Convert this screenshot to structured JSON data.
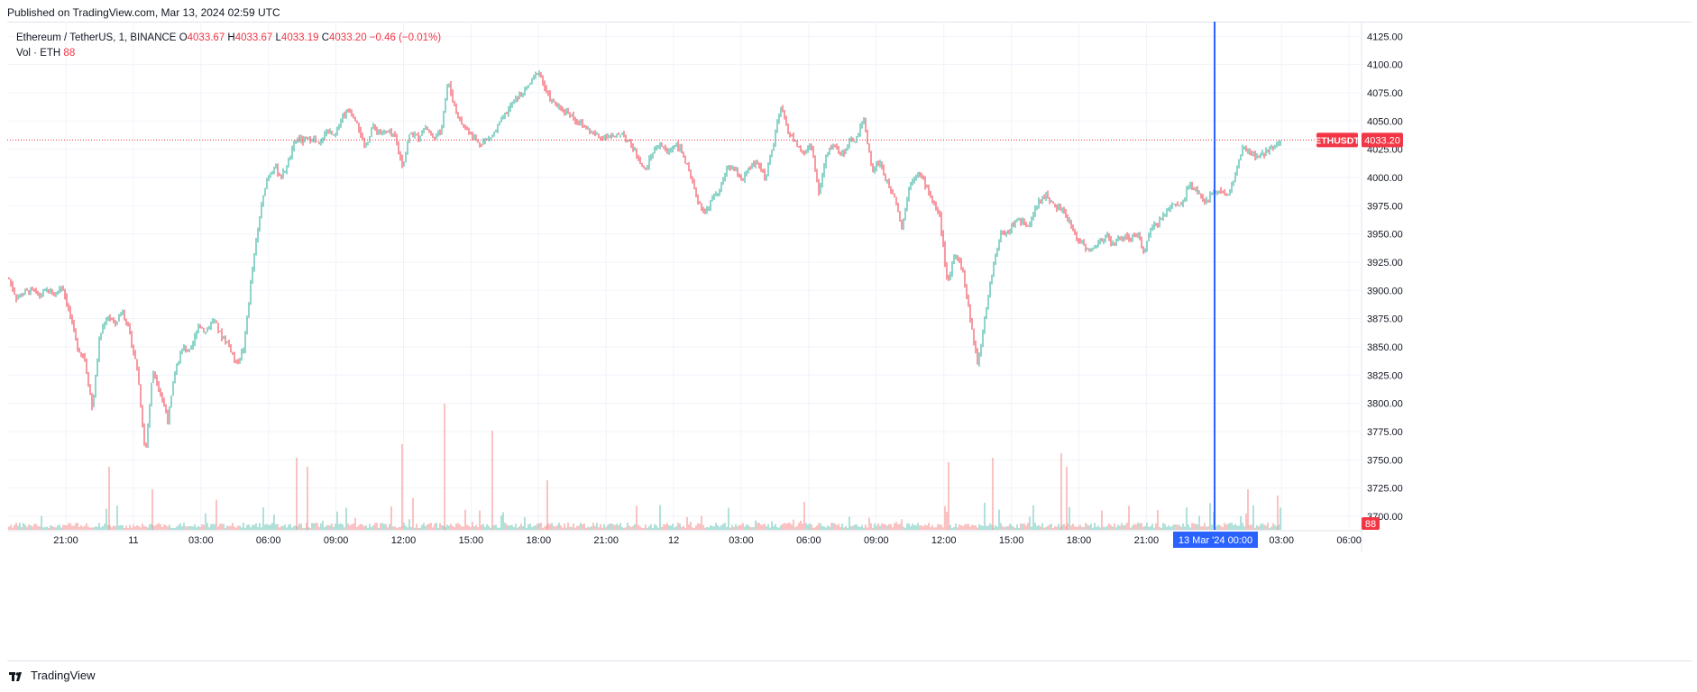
{
  "banner": "Published on TradingView.com, Mar 13, 2024 02:59 UTC",
  "legend": {
    "symbol": "Ethereum / TetherUS, 1, BINANCE",
    "o_label": "O",
    "o": "4033.67",
    "h_label": "H",
    "h": "4033.67",
    "l_label": "L",
    "l": "4033.19",
    "c_label": "C",
    "c": "4033.20",
    "change": "−0.46 (−0.01%)",
    "vol_label": "Vol · ETH",
    "vol_value": "88"
  },
  "price_tag": {
    "symbol": "ETHUSDT",
    "price": "4033.20"
  },
  "volume_tag": "88",
  "crosshair_label": {
    "date": "13 Mar '24",
    "time": "00:00"
  },
  "footer": {
    "brand": "TradingView",
    "logo_icon": "tradingview-logo-icon"
  },
  "colors": {
    "up": "#22ab94",
    "down": "#f23645",
    "crosshair": "#2962ff",
    "volume_up": "#8fd4c9",
    "volume_down": "#f7a9a7"
  },
  "chart_data": {
    "type": "candlestick",
    "symbol": "ETHUSDT",
    "interval": "1",
    "exchange": "BINANCE",
    "y_ticks": [
      "3700.00",
      "3725.00",
      "3750.00",
      "3775.00",
      "3800.00",
      "3825.00",
      "3850.00",
      "3875.00",
      "3900.00",
      "3925.00",
      "3950.00",
      "3975.00",
      "4000.00",
      "4025.00",
      "4050.00",
      "4075.00",
      "4100.00",
      "4125.00"
    ],
    "ylim": [
      3688,
      4138
    ],
    "x_ticks": [
      "21:00",
      "11",
      "03:00",
      "06:00",
      "09:00",
      "12:00",
      "15:00",
      "18:00",
      "21:00",
      "12",
      "03:00",
      "06:00",
      "09:00",
      "12:00",
      "15:00",
      "18:00",
      "21:00",
      "00:00",
      "03:00",
      "06:00"
    ],
    "price_path": [
      [
        "18:00",
        3910
      ],
      [
        "18:30",
        3893
      ],
      [
        "19:00",
        3898
      ],
      [
        "19:30",
        3900
      ],
      [
        "20:00",
        3895
      ],
      [
        "20:30",
        3900
      ],
      [
        "21:00",
        3896
      ],
      [
        "21:30",
        3905
      ],
      [
        "22:00",
        3880
      ],
      [
        "22:30",
        3850
      ],
      [
        "23:00",
        3840
      ],
      [
        "23:20",
        3795
      ],
      [
        "23:40",
        3860
      ],
      [
        "00:00",
        3878
      ],
      [
        "00:30",
        3870
      ],
      [
        "01:00",
        3883
      ],
      [
        "01:30",
        3860
      ],
      [
        "02:00",
        3828
      ],
      [
        "02:10",
        3755
      ],
      [
        "02:20",
        3830
      ],
      [
        "02:40",
        3810
      ],
      [
        "03:00",
        3785
      ],
      [
        "03:30",
        3830
      ],
      [
        "04:00",
        3850
      ],
      [
        "04:30",
        3845
      ],
      [
        "05:00",
        3870
      ],
      [
        "05:30",
        3863
      ],
      [
        "06:00",
        3875
      ],
      [
        "06:30",
        3860
      ],
      [
        "07:00",
        3853
      ],
      [
        "07:30",
        3835
      ],
      [
        "08:00",
        3848
      ],
      [
        "08:20",
        3910
      ],
      [
        "08:40",
        3960
      ],
      [
        "09:00",
        3998
      ],
      [
        "09:30",
        4010
      ],
      [
        "10:00",
        4000
      ],
      [
        "10:20",
        4015
      ],
      [
        "10:40",
        4035
      ],
      [
        "11:00",
        4032
      ],
      [
        "11:30",
        4035
      ],
      [
        "12:00",
        4028
      ],
      [
        "12:30",
        4042
      ],
      [
        "13:00",
        4035
      ],
      [
        "13:30",
        4055
      ],
      [
        "14:00",
        4060
      ],
      [
        "14:30",
        4050
      ],
      [
        "15:00",
        4025
      ],
      [
        "15:30",
        4045
      ],
      [
        "16:00",
        4040
      ],
      [
        "16:30",
        4040
      ],
      [
        "17:00",
        4035
      ],
      [
        "17:30",
        4010
      ],
      [
        "18:00",
        4040
      ],
      [
        "18:30",
        4035
      ],
      [
        "19:00",
        4045
      ],
      [
        "19:30",
        4035
      ],
      [
        "20:00",
        4040
      ],
      [
        "20:20",
        4085
      ],
      [
        "20:40",
        4060
      ],
      [
        "21:00",
        4045
      ],
      [
        "21:30",
        4040
      ],
      [
        "22:00",
        4030
      ],
      [
        "22:30",
        4033
      ],
      [
        "23:00",
        4038
      ],
      [
        "23:30",
        4050
      ],
      [
        "00:00",
        4060
      ],
      [
        "00:30",
        4070
      ],
      [
        "01:00",
        4075
      ],
      [
        "01:30",
        4085
      ],
      [
        "02:00",
        4095
      ],
      [
        "02:30",
        4075
      ],
      [
        "03:00",
        4065
      ],
      [
        "03:30",
        4060
      ],
      [
        "04:00",
        4058
      ],
      [
        "04:30",
        4050
      ],
      [
        "05:00",
        4045
      ],
      [
        "05:30",
        4040
      ],
      [
        "06:00",
        4035
      ],
      [
        "06:30",
        4038
      ],
      [
        "07:00",
        4035
      ],
      [
        "07:30",
        4040
      ],
      [
        "08:00",
        4030
      ],
      [
        "08:30",
        4020
      ],
      [
        "09:00",
        4005
      ],
      [
        "09:30",
        4022
      ],
      [
        "10:00",
        4030
      ],
      [
        "10:30",
        4022
      ],
      [
        "11:00",
        4030
      ],
      [
        "11:30",
        4022
      ],
      [
        "12:00",
        4000
      ],
      [
        "12:30",
        3980
      ],
      [
        "13:00",
        3968
      ],
      [
        "13:30",
        3982
      ],
      [
        "14:00",
        3990
      ],
      [
        "14:30",
        4010
      ],
      [
        "15:00",
        4005
      ],
      [
        "15:30",
        3998
      ],
      [
        "16:00",
        4010
      ],
      [
        "16:30",
        4012
      ],
      [
        "17:00",
        4000
      ],
      [
        "17:30",
        4030
      ],
      [
        "17:45",
        4062
      ],
      [
        "18:00",
        4040
      ],
      [
        "18:30",
        4030
      ],
      [
        "19:00",
        4020
      ],
      [
        "19:20",
        4030
      ],
      [
        "19:40",
        3985
      ],
      [
        "20:00",
        4020
      ],
      [
        "20:30",
        4030
      ],
      [
        "21:00",
        4020
      ],
      [
        "21:30",
        4030
      ],
      [
        "22:00",
        4035
      ],
      [
        "22:20",
        4052
      ],
      [
        "22:40",
        4005
      ],
      [
        "23:00",
        4015
      ],
      [
        "23:30",
        3995
      ],
      [
        "00:00",
        3985
      ],
      [
        "00:20",
        3955
      ],
      [
        "00:40",
        3995
      ],
      [
        "01:00",
        4005
      ],
      [
        "01:30",
        3995
      ],
      [
        "02:00",
        3980
      ],
      [
        "02:30",
        3965
      ],
      [
        "03:00",
        3905
      ],
      [
        "03:20",
        3935
      ],
      [
        "03:40",
        3918
      ],
      [
        "04:00",
        3875
      ],
      [
        "04:10",
        3835
      ],
      [
        "04:20",
        3880
      ],
      [
        "04:40",
        3920
      ],
      [
        "05:00",
        3950
      ],
      [
        "05:30",
        3952
      ],
      [
        "06:00",
        3962
      ],
      [
        "06:30",
        3960
      ],
      [
        "07:00",
        3960
      ],
      [
        "07:30",
        3978
      ],
      [
        "08:00",
        3985
      ],
      [
        "08:30",
        3975
      ],
      [
        "09:00",
        3972
      ],
      [
        "09:30",
        3962
      ],
      [
        "10:00",
        3948
      ],
      [
        "10:30",
        3940
      ],
      [
        "11:00",
        3935
      ],
      [
        "11:30",
        3942
      ],
      [
        "12:00",
        3950
      ],
      [
        "12:30",
        3940
      ],
      [
        "13:00",
        3948
      ],
      [
        "13:30",
        3945
      ],
      [
        "14:00",
        3950
      ],
      [
        "14:30",
        3935
      ],
      [
        "15:00",
        3955
      ],
      [
        "15:30",
        3962
      ],
      [
        "16:00",
        3970
      ],
      [
        "16:30",
        3978
      ],
      [
        "17:00",
        3975
      ],
      [
        "17:20",
        3998
      ],
      [
        "17:40",
        3985
      ],
      [
        "18:00",
        3980
      ],
      [
        "18:30",
        3985
      ],
      [
        "19:00",
        3990
      ],
      [
        "19:20",
        3982
      ],
      [
        "19:40",
        4002
      ],
      [
        "20:00",
        4025
      ],
      [
        "20:30",
        4022
      ],
      [
        "21:00",
        4017
      ],
      [
        "21:30",
        4022
      ],
      [
        "22:00",
        4028
      ],
      [
        "22:20",
        4033.2
      ]
    ]
  }
}
